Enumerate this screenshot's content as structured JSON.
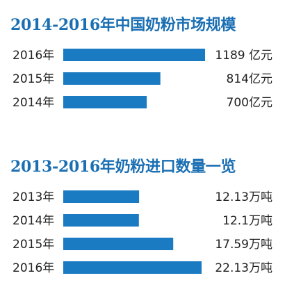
{
  "chart_data": [
    {
      "type": "bar",
      "orientation": "horizontal",
      "title": "2014-2016年中国奶粉市场规模",
      "categories": [
        "2016年",
        "2015年",
        "2014年"
      ],
      "values": [
        1189,
        814,
        700
      ],
      "value_labels": [
        "1189 亿元",
        "814亿元",
        "700亿元"
      ],
      "unit": "亿元",
      "color": "#1a7ac2",
      "grid": false,
      "legend": "none"
    },
    {
      "type": "bar",
      "orientation": "horizontal",
      "title": "2013-2016年奶粉进口数量一览",
      "categories": [
        "2013年",
        "2014年",
        "2015年",
        "2016年"
      ],
      "values": [
        12.13,
        12.1,
        17.59,
        22.13
      ],
      "value_labels": [
        "12.13万吨",
        "12.1万吨",
        "17.59万吨",
        "22.13万吨"
      ],
      "unit": "万吨",
      "color": "#1a7ac2",
      "grid": false,
      "legend": "none"
    }
  ],
  "colors": {
    "title": "#1a6fb3",
    "bar": "#1a7ac2",
    "text": "#222222"
  }
}
